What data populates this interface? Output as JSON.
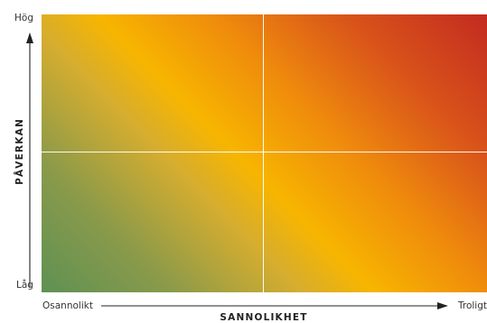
{
  "axes": {
    "y_title": "PÅVERKAN",
    "y_high": "Hög",
    "y_low": "Låg",
    "x_title": "SANNOLIKHET",
    "x_low": "Osannolikt",
    "x_high": "Troligt"
  },
  "colors": {
    "low_risk": "#5e9153",
    "medium_risk": "#f7b500",
    "high_risk": "#c32a20",
    "divider": "#ffffff",
    "axis": "#222222"
  }
}
